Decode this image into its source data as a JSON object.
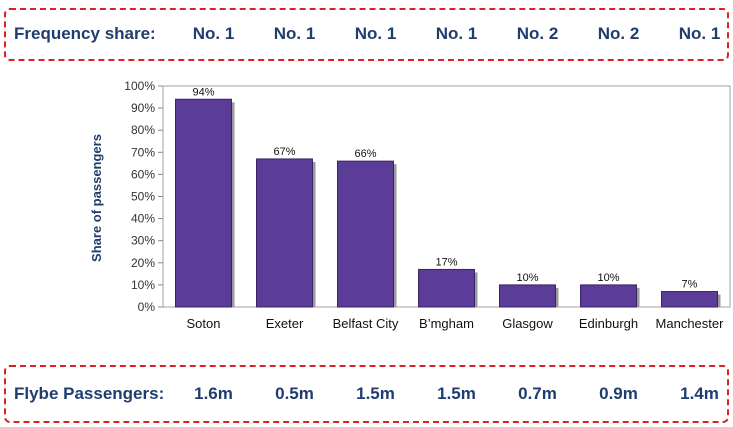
{
  "frequency": {
    "label": "Frequency share:",
    "values": [
      "No. 1",
      "No. 1",
      "No. 1",
      "No. 1",
      "No. 2",
      "No. 2",
      "No. 1"
    ]
  },
  "passengers": {
    "label": "Flybe Passengers:",
    "values": [
      "1.6m",
      "0.5m",
      "1.5m",
      "1.5m",
      "0.7m",
      "0.9m",
      "1.4m"
    ]
  },
  "chart_data": {
    "type": "bar",
    "categories": [
      "Soton",
      "Exeter",
      "Belfast City",
      "B’mgham",
      "Glasgow",
      "Edinburgh",
      "Manchester"
    ],
    "values": [
      94,
      67,
      66,
      17,
      10,
      10,
      7
    ],
    "data_labels": [
      "94%",
      "67%",
      "66%",
      "17%",
      "10%",
      "10%",
      "7%"
    ],
    "ylabel": "Share of passengers",
    "ylim": [
      0,
      100
    ],
    "yticks": [
      "0%",
      "10%",
      "20%",
      "30%",
      "40%",
      "50%",
      "60%",
      "70%",
      "80%",
      "90%",
      "100%"
    ],
    "bar_color": "#5b3c98",
    "grid": false,
    "legend": "none"
  }
}
